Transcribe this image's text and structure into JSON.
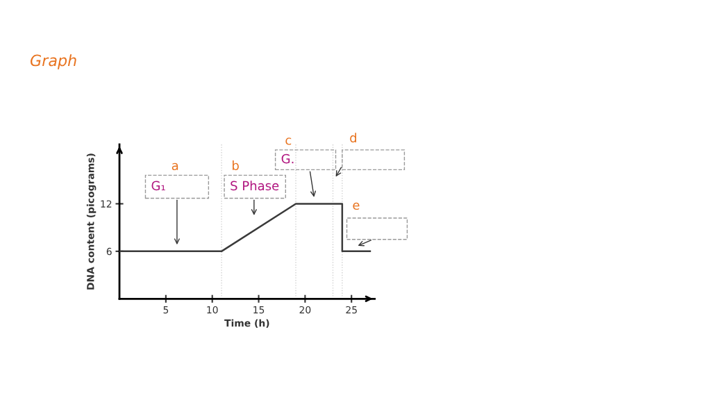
{
  "chart_data": {
    "type": "line",
    "title": "Graph",
    "xlabel": "Time (h)",
    "ylabel": "DNA content (picograms)",
    "x": [
      0,
      11,
      19,
      24,
      24,
      27
    ],
    "series": [
      {
        "color": "#3a3a3a",
        "values": [
          6,
          6,
          12,
          12,
          6,
          6
        ]
      }
    ],
    "xlim": [
      0,
      27.5
    ],
    "ylim": [
      0,
      19.5
    ],
    "xticks": [
      5,
      10,
      15,
      20,
      25
    ],
    "yticks": [
      6,
      12
    ],
    "grid": false,
    "marker": "none",
    "line_style": "solid",
    "ref_lines": [
      {
        "axis": "x",
        "value": 11,
        "color": "#d0d0d0",
        "line_style": "dotted"
      },
      {
        "axis": "x",
        "value": 19,
        "color": "#d0d0d0",
        "line_style": "dotted"
      },
      {
        "axis": "x",
        "value": 23,
        "color": "#d0d0d0",
        "line_style": "dotted"
      },
      {
        "axis": "x",
        "value": 24,
        "color": "#d0d0d0",
        "line_style": "dotted"
      }
    ],
    "annotations": [
      "a",
      "b",
      "c",
      "d",
      "e",
      "G₁",
      "S Phase",
      "G."
    ]
  }
}
